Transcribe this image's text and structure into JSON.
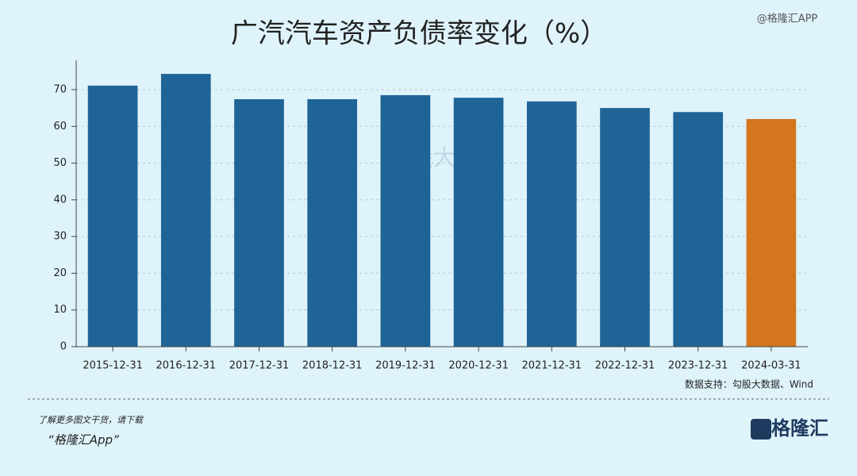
{
  "chart_data": {
    "type": "bar",
    "title": "广汽汽车资产负债率变化（%）",
    "watermark_handle": "@格隆汇APP",
    "watermark": "勾股大数据",
    "source": "数据支持：勾股大数据、Wind",
    "footer_line1": "了解更多图文干货，请下载",
    "footer_line2": "“格隆汇App”",
    "logo": "格隆汇",
    "categories": [
      "2015-12-31",
      "2016-12-31",
      "2017-12-31",
      "2018-12-31",
      "2019-12-31",
      "2020-12-31",
      "2021-12-31",
      "2022-12-31",
      "2023-12-31",
      "2024-03-31"
    ],
    "values": [
      71.1,
      74.3,
      67.4,
      67.4,
      68.5,
      67.8,
      66.8,
      65.0,
      63.9,
      62.0
    ],
    "colors": [
      "#1f6496",
      "#1f6496",
      "#1f6496",
      "#1f6496",
      "#1f6496",
      "#1f6496",
      "#1f6496",
      "#1f6496",
      "#1f6496",
      "#d4761e"
    ],
    "ylim": [
      0,
      78
    ],
    "yticks": [
      0,
      10,
      20,
      30,
      40,
      50,
      60,
      70
    ],
    "grid": true
  }
}
